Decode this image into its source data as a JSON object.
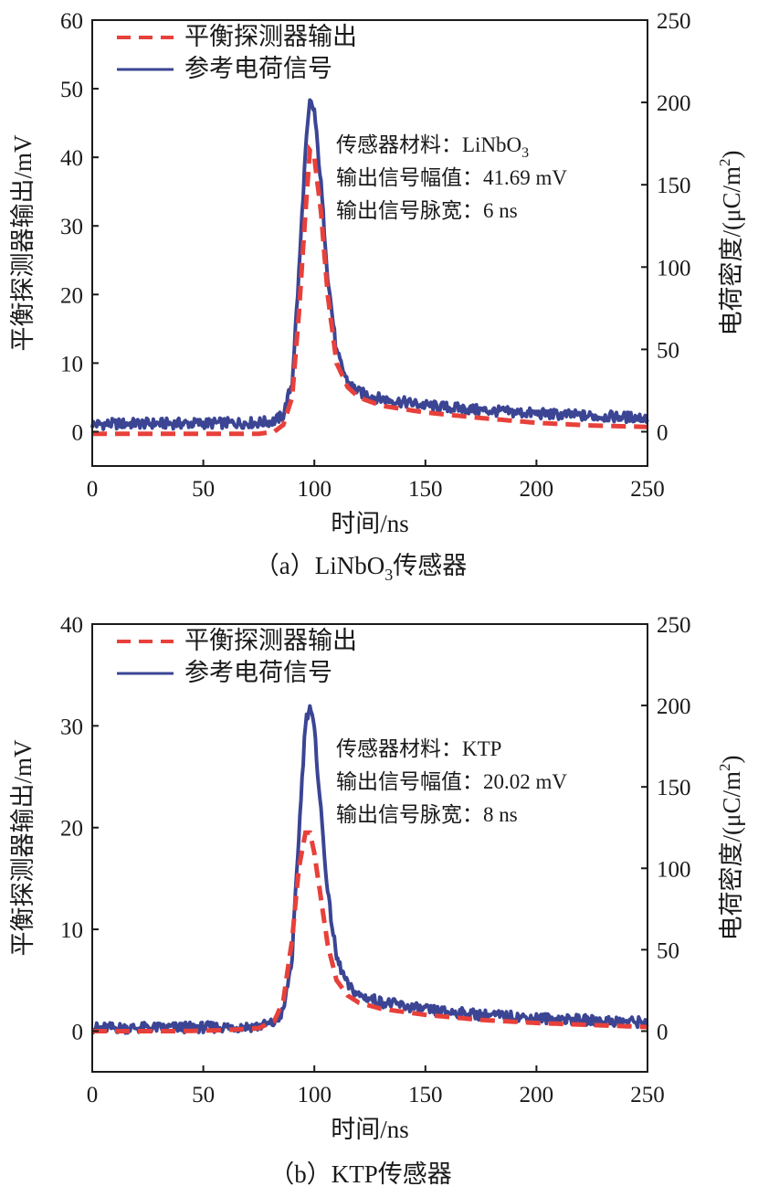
{
  "colors": {
    "dashed_series": "#e8403a",
    "solid_series": "#3b4594",
    "axes": "#1a1a1a",
    "background": "#ffffff"
  },
  "chart_data": [
    {
      "type": "line",
      "panel": "a",
      "caption": "（a）LiNbO₃传感器",
      "caption_parts": {
        "pre": "（a）LiNbO",
        "sub": "3",
        "post": "传感器"
      },
      "xlabel": "时间/ns",
      "ylabel": "平衡探测器输出/mV",
      "y2label": "电荷密度/(μC/m²)",
      "y2label_parts": {
        "pre": "电荷密度/(μC/m",
        "sup": "2",
        "post": ")"
      },
      "xlim": [
        0,
        250
      ],
      "ylim": [
        -5,
        60
      ],
      "y2lim": [
        -20.83,
        250
      ],
      "xticks": [
        0,
        50,
        100,
        150,
        200,
        250
      ],
      "yticks": [
        0,
        10,
        20,
        30,
        40,
        50,
        60
      ],
      "y2ticks": [
        0,
        50,
        100,
        150,
        200,
        250
      ],
      "legend": {
        "position": "top-left",
        "entries": [
          "平衡探测器输出",
          "参考电荷信号"
        ]
      },
      "annotation": {
        "line1_pre": "传感器材料：LiNbO",
        "line1_sub": "3",
        "line2": "输出信号幅值：41.69 mV",
        "line3": "输出信号脉宽：6 ns"
      },
      "series": [
        {
          "name": "平衡探测器输出",
          "axis": "left",
          "style": "dashed",
          "x": [
            0,
            20,
            40,
            60,
            75,
            82,
            86,
            90,
            93,
            96,
            98,
            100,
            103,
            106,
            110,
            115,
            120,
            130,
            150,
            175,
            200,
            225,
            250
          ],
          "values": [
            -0.3,
            -0.3,
            -0.3,
            -0.3,
            -0.3,
            0.0,
            1.0,
            5.0,
            17.0,
            32.0,
            41.0,
            40.0,
            32.0,
            20.0,
            10.0,
            6.5,
            5.0,
            3.8,
            2.8,
            2.0,
            1.3,
            0.9,
            0.7
          ]
        },
        {
          "name": "参考电荷信号",
          "axis": "right",
          "style": "solid",
          "x": [
            0,
            20,
            40,
            60,
            75,
            82,
            86,
            90,
            93,
            96,
            98,
            100,
            103,
            106,
            110,
            115,
            120,
            130,
            150,
            175,
            200,
            225,
            250
          ],
          "values": [
            4.5,
            5.0,
            5.0,
            5.2,
            5.5,
            6.5,
            10.0,
            30.0,
            95.0,
            170.0,
            200.0,
            195.0,
            150.0,
            95.0,
            48.0,
            30.0,
            24.0,
            20.0,
            16.0,
            13.0,
            11.0,
            9.5,
            8.5
          ]
        }
      ]
    },
    {
      "type": "line",
      "panel": "b",
      "caption": "（b）KTP传感器",
      "caption_parts": {
        "pre": "（b）KTP传感器",
        "sub": "",
        "post": ""
      },
      "xlabel": "时间/ns",
      "ylabel": "平衡探测器输出/mV",
      "y2label": "电荷密度/(μC/m²)",
      "y2label_parts": {
        "pre": "电荷密度/(μC/m",
        "sup": "2",
        "post": ")"
      },
      "xlim": [
        0,
        250
      ],
      "ylim": [
        -4,
        40
      ],
      "y2lim": [
        -25,
        250
      ],
      "xticks": [
        0,
        50,
        100,
        150,
        200,
        250
      ],
      "yticks": [
        0,
        10,
        20,
        30,
        40
      ],
      "y2ticks": [
        0,
        50,
        100,
        150,
        200,
        250
      ],
      "legend": {
        "position": "top-left",
        "entries": [
          "平衡探测器输出",
          "参考电荷信号"
        ]
      },
      "annotation": {
        "line1_pre": "传感器材料：KTP",
        "line1_sub": "",
        "line2": "输出信号幅值：20.02 mV",
        "line3": "输出信号脉宽：8 ns"
      },
      "series": [
        {
          "name": "平衡探测器输出",
          "axis": "left",
          "style": "dashed",
          "x": [
            0,
            20,
            40,
            60,
            75,
            82,
            86,
            90,
            93,
            96,
            98,
            100,
            103,
            106,
            110,
            115,
            120,
            130,
            150,
            175,
            200,
            225,
            250
          ],
          "values": [
            0.0,
            0.0,
            0.0,
            0.1,
            0.3,
            1.0,
            3.0,
            9.0,
            16.0,
            19.5,
            19.5,
            17.5,
            13.0,
            8.5,
            5.0,
            3.5,
            2.8,
            2.2,
            1.6,
            1.1,
            0.8,
            0.6,
            0.4
          ]
        },
        {
          "name": "参考电荷信号",
          "axis": "right",
          "style": "solid",
          "x": [
            0,
            20,
            40,
            60,
            75,
            82,
            86,
            90,
            93,
            96,
            98,
            100,
            103,
            106,
            110,
            115,
            120,
            130,
            150,
            175,
            200,
            225,
            250
          ],
          "values": [
            2.0,
            2.0,
            2.2,
            2.5,
            3.0,
            5.0,
            12.0,
            45.0,
            120.0,
            190.0,
            200.0,
            185.0,
            135.0,
            85.0,
            45.0,
            28.0,
            22.0,
            18.0,
            13.0,
            10.0,
            8.0,
            6.5,
            5.5
          ]
        }
      ]
    }
  ]
}
